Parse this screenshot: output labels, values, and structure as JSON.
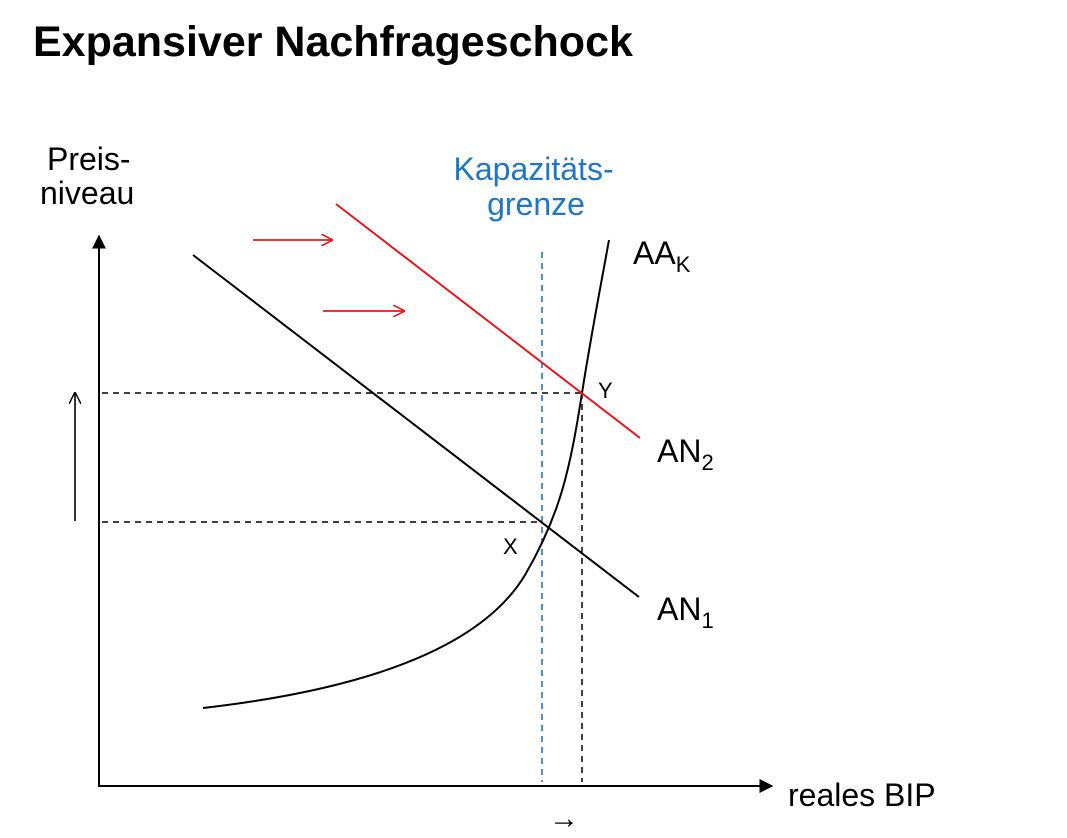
{
  "title": "Expansiver Nachfrageschock",
  "y_axis_label": {
    "line1": "Preis-",
    "line2": "niveau"
  },
  "x_axis_label": "reales BIP",
  "capacity_label": {
    "line1": "Kapazitäts-",
    "line2": "grenze"
  },
  "curves": {
    "supply": {
      "main": "AA",
      "sub": "K"
    },
    "demand_new": {
      "main": "AN",
      "sub": "2"
    },
    "demand_old": {
      "main": "AN",
      "sub": "1"
    }
  },
  "points": {
    "initial": "X",
    "new": "Y"
  },
  "shift_arrow": "→",
  "colors": {
    "demand_new": "#e8161b",
    "capacity": "#1f77c2",
    "axes": "#000000"
  }
}
